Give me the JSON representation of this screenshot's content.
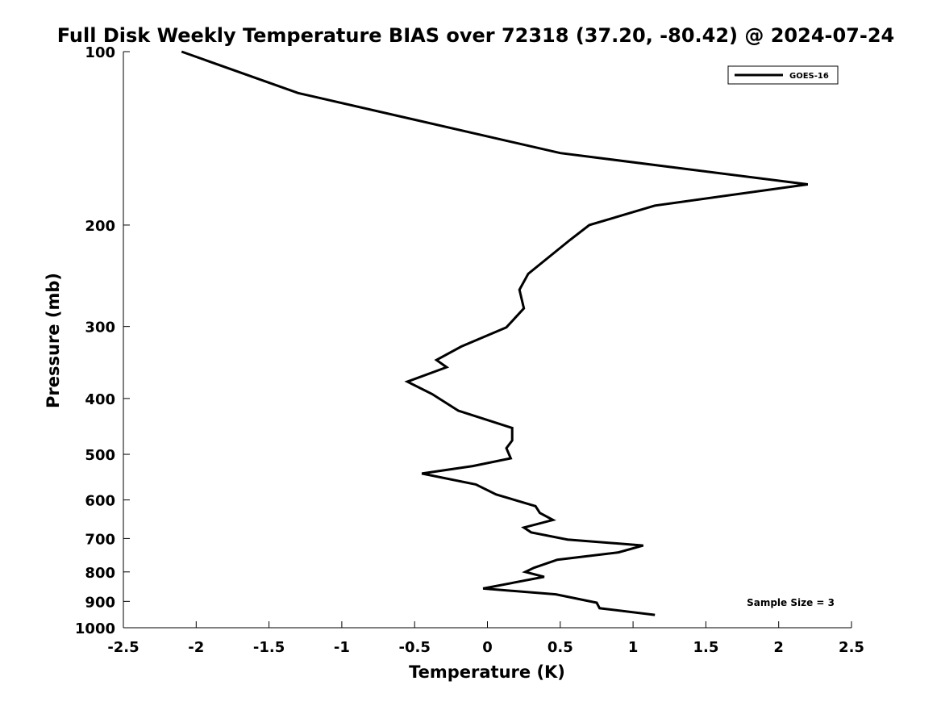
{
  "chart_data": {
    "type": "line",
    "title": "Full Disk Weekly Temperature BIAS over 72318 (37.20, -80.42) @ 2024-07-24",
    "xlabel": "Temperature (K)",
    "ylabel": "Pressure (mb)",
    "xlim": [
      -2.5,
      2.5
    ],
    "ylim": [
      100,
      1000
    ],
    "y_scale": "log",
    "y_reversed": true,
    "grid": false,
    "x_ticks": [
      -2.5,
      -2,
      -1.5,
      -1,
      -0.5,
      0,
      0.5,
      1,
      1.5,
      2,
      2.5
    ],
    "x_tick_labels": [
      "-2.5",
      "-2",
      "-1.5",
      "-1",
      "-0.5",
      "0",
      "0.5",
      "1",
      "1.5",
      "2",
      "2.5"
    ],
    "y_ticks": [
      100,
      200,
      300,
      400,
      500,
      600,
      700,
      800,
      900,
      1000
    ],
    "y_tick_labels": [
      "100",
      "200",
      "300",
      "400",
      "500",
      "600",
      "700",
      "800",
      "900",
      "1000"
    ],
    "legend": {
      "placement": "top-right",
      "entries": [
        "GOES-16"
      ]
    },
    "annotations": [
      {
        "text": "Sample Size = 3",
        "placement": "bottom-right"
      }
    ],
    "series": [
      {
        "name": "GOES-16",
        "color": "#000000",
        "points": [
          [
            -2.1,
            100
          ],
          [
            -1.3,
            118
          ],
          [
            0.5,
            150
          ],
          [
            2.2,
            170
          ],
          [
            1.15,
            185
          ],
          [
            0.7,
            200
          ],
          [
            0.57,
            212
          ],
          [
            0.28,
            243
          ],
          [
            0.22,
            259
          ],
          [
            0.25,
            279
          ],
          [
            0.13,
            301
          ],
          [
            -0.18,
            325
          ],
          [
            -0.35,
            343
          ],
          [
            -0.28,
            353
          ],
          [
            -0.55,
            374
          ],
          [
            -0.38,
            393
          ],
          [
            -0.2,
            420
          ],
          [
            0.17,
            450
          ],
          [
            0.17,
            473
          ],
          [
            0.13,
            488
          ],
          [
            0.16,
            508
          ],
          [
            -0.1,
            524
          ],
          [
            -0.45,
            540
          ],
          [
            -0.08,
            564
          ],
          [
            0.06,
            587
          ],
          [
            0.33,
            615
          ],
          [
            0.36,
            632
          ],
          [
            0.45,
            650
          ],
          [
            0.25,
            670
          ],
          [
            0.3,
            683
          ],
          [
            0.55,
            703
          ],
          [
            1.07,
            720
          ],
          [
            0.9,
            740
          ],
          [
            0.48,
            762
          ],
          [
            0.32,
            787
          ],
          [
            0.26,
            800
          ],
          [
            0.39,
            816
          ],
          [
            -0.03,
            855
          ],
          [
            0.47,
            875
          ],
          [
            0.75,
            905
          ],
          [
            0.77,
            925
          ],
          [
            1.15,
            950
          ]
        ]
      }
    ]
  }
}
